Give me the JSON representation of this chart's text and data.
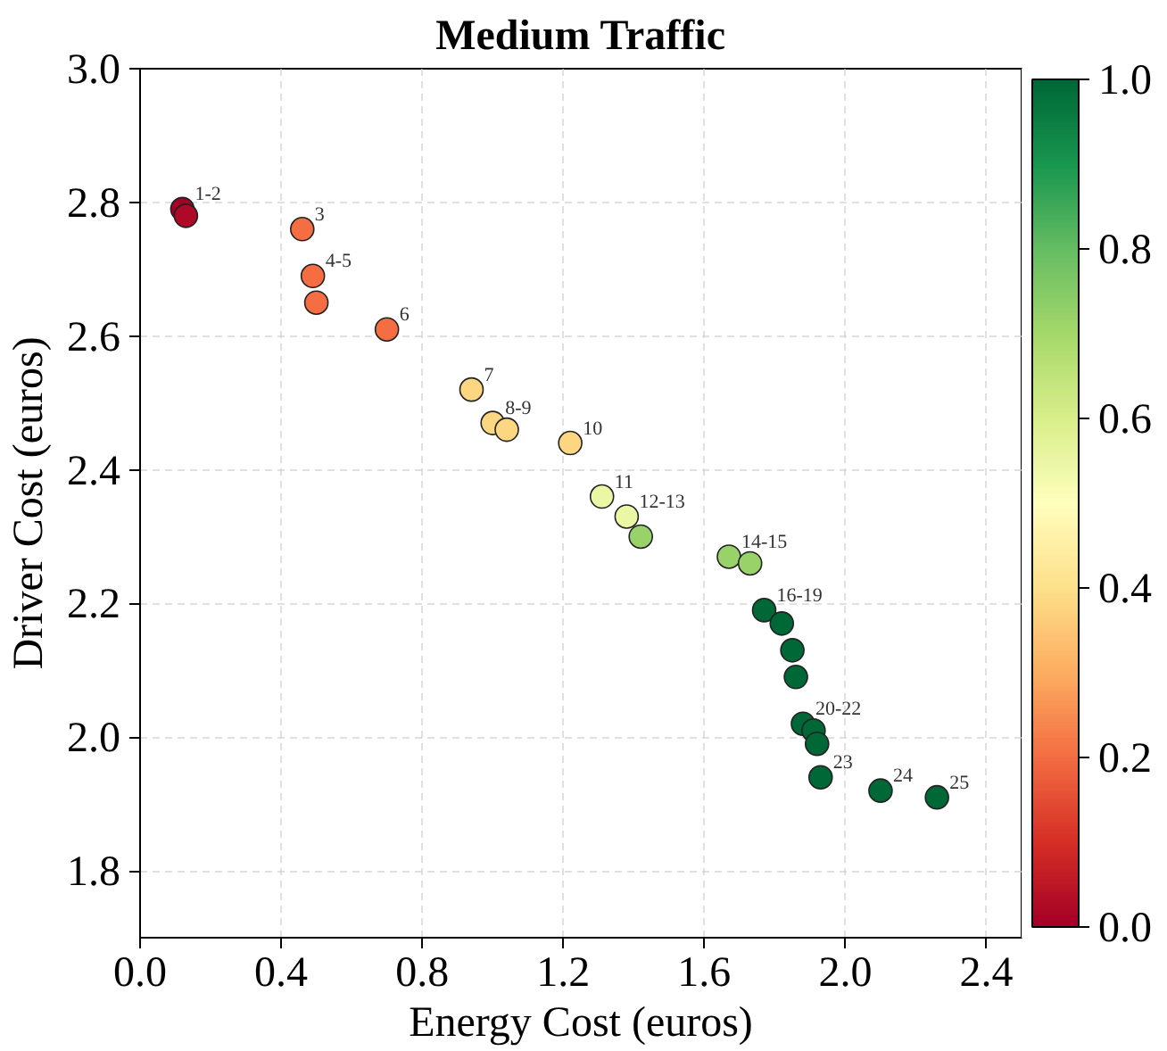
{
  "chart_data": {
    "type": "scatter",
    "title": "Medium Traffic",
    "xlabel": "Energy Cost (euros)",
    "ylabel": "Driver Cost (euros)",
    "x": [
      0.12,
      0.13,
      0.46,
      0.49,
      0.5,
      0.7,
      0.94,
      1.0,
      1.04,
      1.22,
      1.31,
      1.38,
      1.42,
      1.67,
      1.73,
      1.77,
      1.82,
      1.85,
      1.86,
      1.88,
      1.91,
      1.92,
      1.93,
      2.1,
      2.26
    ],
    "values": [
      2.79,
      2.78,
      2.76,
      2.69,
      2.65,
      2.61,
      2.52,
      2.47,
      2.46,
      2.44,
      2.36,
      2.33,
      2.3,
      2.27,
      2.26,
      2.19,
      2.17,
      2.13,
      2.09,
      2.02,
      2.01,
      1.99,
      1.94,
      1.92,
      1.91
    ],
    "cvalues": [
      0.0,
      0.02,
      0.2,
      0.2,
      0.2,
      0.2,
      0.38,
      0.38,
      0.38,
      0.38,
      0.55,
      0.55,
      0.72,
      0.72,
      0.72,
      1.0,
      1.0,
      1.0,
      1.0,
      1.0,
      1.0,
      1.0,
      1.0,
      1.0,
      1.0
    ],
    "clim": [
      0.0,
      1.0
    ],
    "cticks": [
      {
        "value": 0,
        "label": "0.0"
      },
      {
        "value": 0.2,
        "label": "0.2"
      },
      {
        "value": 0.4,
        "label": "0.4"
      },
      {
        "value": 0.6,
        "label": "0.6"
      },
      {
        "value": 0.8,
        "label": "0.8"
      },
      {
        "value": 1,
        "label": "1.0"
      }
    ],
    "xlim": [
      0.0,
      2.5
    ],
    "xticks": [
      {
        "value": 0,
        "label": "0.0"
      },
      {
        "value": 0.4,
        "label": "0.4"
      },
      {
        "value": 0.8,
        "label": "0.8"
      },
      {
        "value": 1.2,
        "label": "1.2"
      },
      {
        "value": 1.6,
        "label": "1.6"
      },
      {
        "value": 2.0,
        "label": "2.0"
      },
      {
        "value": 2.4,
        "label": "2.4"
      }
    ],
    "ylim": [
      1.7,
      3.0
    ],
    "yticks": [
      {
        "value": 1.8,
        "label": "1.8"
      },
      {
        "value": 2.0,
        "label": "2.0"
      },
      {
        "value": 2.2,
        "label": "2.2"
      },
      {
        "value": 2.4,
        "label": "2.4"
      },
      {
        "value": 2.6,
        "label": "2.6"
      },
      {
        "value": 2.8,
        "label": "2.8"
      },
      {
        "value": 3.0,
        "label": "3.0"
      }
    ],
    "grid": true,
    "marker": "circle",
    "annotations": [
      {
        "text": "1-2",
        "x": 0.12,
        "y": 2.79
      },
      {
        "text": "3",
        "x": 0.46,
        "y": 2.76
      },
      {
        "text": "4-5",
        "x": 0.49,
        "y": 2.69
      },
      {
        "text": "6",
        "x": 0.7,
        "y": 2.61
      },
      {
        "text": "7",
        "x": 0.94,
        "y": 2.52
      },
      {
        "text": "8-9",
        "x": 1.0,
        "y": 2.47
      },
      {
        "text": "10",
        "x": 1.22,
        "y": 2.44
      },
      {
        "text": "11",
        "x": 1.31,
        "y": 2.36
      },
      {
        "text": "12-13",
        "x": 1.38,
        "y": 2.33
      },
      {
        "text": "14-15",
        "x": 1.67,
        "y": 2.27
      },
      {
        "text": "16-19",
        "x": 1.77,
        "y": 2.19
      },
      {
        "text": "20-22",
        "x": 1.88,
        "y": 2.02
      },
      {
        "text": "23",
        "x": 1.93,
        "y": 1.94
      },
      {
        "text": "24",
        "x": 2.1,
        "y": 1.92
      },
      {
        "text": "25",
        "x": 2.26,
        "y": 1.91
      }
    ]
  }
}
